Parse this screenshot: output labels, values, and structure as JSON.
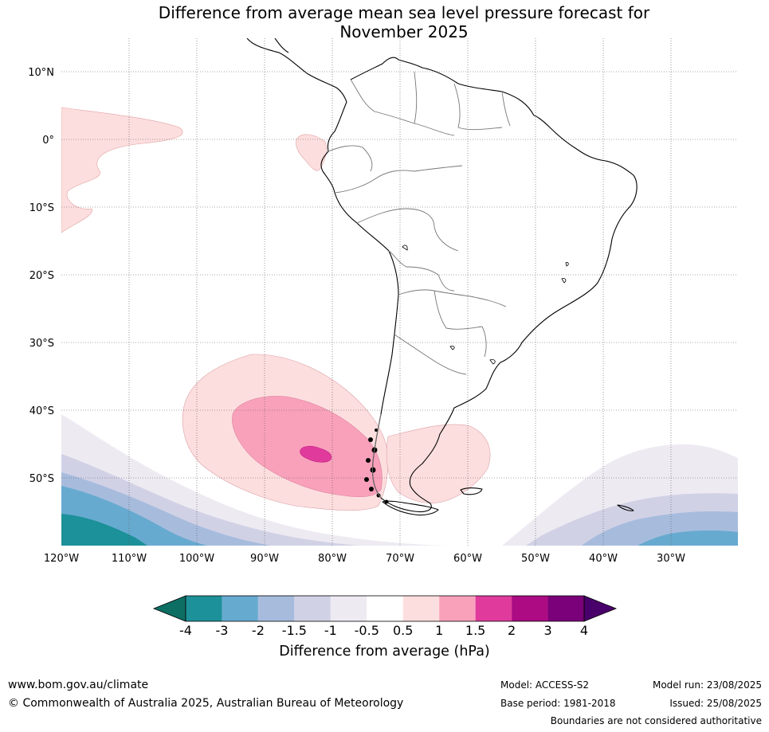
{
  "title_line1": "Difference from average mean sea level pressure forecast for",
  "title_line2": "November 2025",
  "lat_labels": [
    "10°N",
    "0°",
    "10°S",
    "20°S",
    "30°S",
    "40°S",
    "50°S"
  ],
  "lon_labels": [
    "120°W",
    "110°W",
    "100°W",
    "90°W",
    "80°W",
    "70°W",
    "60°W",
    "50°W",
    "40°W",
    "30°W"
  ],
  "colorbar": {
    "colors": [
      "#0d6e63",
      "#1d9199",
      "#67aad0",
      "#a7bcdd",
      "#d1d1e6",
      "#eeeaf2",
      "#ffffff",
      "#fddede",
      "#f9a1bb",
      "#e03b9c",
      "#ac0b83",
      "#7a0179",
      "#49006a"
    ],
    "ticks": [
      "-4",
      "-3",
      "-2",
      "-1.5",
      "-1",
      "-0.5",
      "0.5",
      "1",
      "1.5",
      "2",
      "3",
      "4"
    ],
    "label": "Difference from average (hPa)"
  },
  "footer": {
    "url": "www.bom.gov.au/climate",
    "copyright": "© Commonwealth of Australia 2025, Australian Bureau of Meteorology",
    "model": "Model: ACCESS-S2",
    "base_period": "Base period: 1981-2018",
    "model_run": "Model run: 23/08/2025",
    "issued": "Issued: 25/08/2025",
    "disclaimer": "Boundaries are not considered authoritative"
  }
}
